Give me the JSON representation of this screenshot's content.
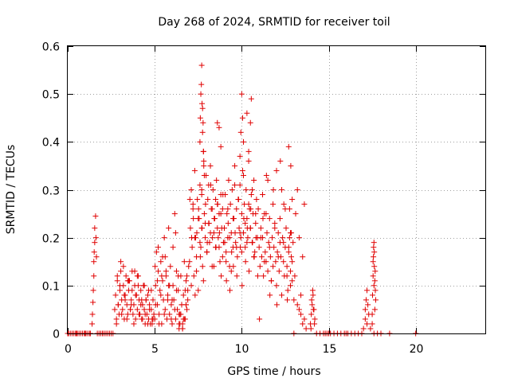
{
  "chart_data": {
    "type": "scatter",
    "title": "Day 268 of 2024, SRMTID for receiver toil",
    "xlabel": "GPS time / hours",
    "ylabel": "SRMTID / TECUs",
    "xlim": [
      0,
      24
    ],
    "ylim": [
      0,
      0.6
    ],
    "xticks": [
      0,
      5,
      10,
      15,
      20
    ],
    "yticks": [
      0,
      0.1,
      0.2,
      0.3,
      0.4,
      0.5,
      0.6
    ],
    "xtick_labels": [
      "0",
      "5",
      "10",
      "15",
      "20"
    ],
    "ytick_labels": [
      "0",
      "0.1",
      "0.2",
      "0.3",
      "0.4",
      "0.5",
      "0.6"
    ],
    "grid": true,
    "marker": "+",
    "series": [
      {
        "name": "SRMTID",
        "color": "#e00000",
        "x": [
          0.05,
          0.15,
          0.25,
          0.35,
          0.45,
          0.55,
          0.65,
          0.75,
          0.85,
          0.95,
          1.05,
          1.15,
          1.25,
          1.3,
          1.4,
          1.42,
          1.45,
          1.47,
          1.5,
          1.5,
          1.52,
          1.55,
          1.55,
          1.6,
          1.62,
          1.65,
          1.7,
          1.8,
          1.9,
          2.0,
          2.1,
          2.2,
          2.3,
          2.4,
          2.5,
          2.7,
          2.75,
          2.8,
          2.85,
          2.9,
          2.95,
          3.0,
          3.05,
          3.1,
          3.15,
          3.2,
          3.25,
          3.3,
          3.35,
          3.4,
          3.45,
          3.5,
          3.55,
          3.6,
          3.65,
          3.7,
          3.75,
          3.8,
          3.85,
          3.9,
          3.95,
          4.0,
          4.05,
          4.1,
          4.15,
          4.2,
          4.25,
          4.3,
          4.35,
          4.4,
          4.45,
          4.5,
          4.55,
          4.6,
          4.65,
          4.7,
          4.75,
          4.8,
          4.85,
          4.9,
          4.95,
          2.8,
          2.9,
          3.0,
          3.1,
          3.2,
          3.3,
          3.4,
          3.5,
          3.6,
          3.7,
          3.8,
          3.9,
          4.0,
          4.1,
          4.2,
          4.3,
          4.4,
          4.5,
          4.6,
          4.7,
          4.8,
          4.9,
          2.85,
          3.05,
          3.25,
          3.45,
          3.65,
          3.85,
          4.05,
          4.25,
          4.45,
          4.65,
          4.85,
          5.0,
          5.05,
          5.1,
          5.15,
          5.2,
          5.25,
          5.3,
          5.35,
          5.4,
          5.45,
          5.5,
          5.55,
          5.6,
          5.65,
          5.7,
          5.75,
          5.8,
          5.85,
          5.9,
          5.95,
          6.0,
          6.05,
          6.1,
          6.15,
          6.2,
          6.25,
          6.3,
          6.35,
          6.4,
          6.45,
          6.5,
          6.55,
          6.6,
          6.65,
          6.7,
          6.75,
          6.8,
          6.85,
          6.9,
          6.95,
          5.05,
          5.15,
          5.25,
          5.35,
          5.45,
          5.55,
          5.65,
          5.75,
          5.85,
          5.95,
          6.05,
          6.15,
          6.25,
          6.35,
          6.45,
          6.55,
          6.65,
          6.75,
          6.85,
          5.02,
          5.2,
          5.4,
          5.6,
          5.8,
          6.0,
          6.2,
          6.4,
          6.6,
          6.8,
          6.4,
          6.5,
          6.6,
          6.7,
          6.8,
          6.9,
          7.0,
          7.05,
          7.1,
          7.15,
          7.2,
          7.25,
          7.3,
          7.35,
          7.4,
          7.45,
          7.5,
          7.55,
          7.6,
          7.65,
          7.7,
          7.75,
          7.8,
          7.85,
          7.9,
          7.95,
          8.0,
          8.05,
          8.1,
          8.15,
          8.2,
          8.25,
          8.3,
          8.35,
          8.4,
          8.45,
          8.5,
          8.55,
          8.6,
          8.65,
          8.7,
          8.75,
          8.8,
          8.85,
          8.9,
          8.95,
          7.1,
          7.2,
          7.3,
          7.4,
          7.5,
          7.6,
          7.7,
          7.8,
          7.9,
          8.0,
          8.1,
          8.2,
          8.3,
          8.4,
          8.5,
          8.6,
          8.7,
          8.8,
          8.9,
          7.02,
          7.12,
          7.22,
          7.32,
          7.42,
          7.52,
          7.62,
          7.72,
          7.82,
          7.92,
          8.02,
          8.12,
          8.22,
          8.32,
          8.42,
          8.52,
          8.62,
          8.72,
          8.82,
          8.92,
          7.6,
          7.62,
          7.65,
          7.68,
          7.7,
          7.72,
          7.75,
          7.78,
          7.8,
          7.82,
          7.85,
          7.7,
          7.75,
          9.0,
          9.05,
          9.1,
          9.15,
          9.2,
          9.25,
          9.3,
          9.35,
          9.4,
          9.45,
          9.5,
          9.55,
          9.6,
          9.65,
          9.7,
          9.75,
          9.8,
          9.85,
          9.9,
          9.95,
          10.0,
          10.05,
          10.1,
          10.15,
          10.2,
          10.25,
          10.3,
          10.35,
          10.4,
          10.45,
          10.5,
          10.55,
          10.6,
          10.65,
          10.7,
          10.75,
          10.8,
          10.85,
          10.9,
          10.95,
          9.1,
          9.2,
          9.3,
          9.4,
          9.5,
          9.6,
          9.7,
          9.8,
          9.9,
          10.0,
          10.1,
          10.2,
          10.3,
          10.4,
          10.5,
          10.6,
          10.7,
          10.8,
          10.9,
          9.02,
          9.12,
          9.22,
          9.32,
          9.42,
          9.52,
          9.62,
          9.72,
          9.82,
          9.92,
          10.02,
          10.12,
          10.22,
          10.32,
          10.42,
          10.52,
          10.62,
          10.72,
          10.82,
          10.92,
          9.9,
          9.95,
          10.0,
          10.05,
          10.1,
          10.4,
          10.5,
          10.55,
          10.3,
          8.6,
          8.7,
          8.8,
          11.0,
          11.05,
          11.1,
          11.15,
          11.2,
          11.25,
          11.3,
          11.35,
          11.4,
          11.45,
          11.5,
          11.55,
          11.6,
          11.65,
          11.7,
          11.75,
          11.8,
          11.85,
          11.9,
          11.95,
          12.0,
          12.05,
          12.1,
          12.15,
          12.2,
          12.25,
          12.3,
          12.35,
          12.4,
          12.45,
          12.5,
          12.55,
          12.6,
          12.65,
          12.7,
          12.75,
          12.8,
          12.85,
          12.9,
          12.95,
          11.1,
          11.2,
          11.3,
          11.4,
          11.5,
          11.6,
          11.7,
          11.8,
          11.9,
          12.0,
          12.1,
          12.2,
          12.3,
          12.4,
          12.5,
          12.6,
          12.7,
          12.8,
          12.9,
          11.02,
          11.22,
          11.42,
          11.62,
          11.82,
          12.02,
          12.22,
          12.42,
          12.62,
          12.82,
          12.7,
          12.75,
          12.8,
          12.85,
          12.9,
          13.0,
          13.05,
          13.1,
          13.2,
          13.3,
          13.4,
          13.5,
          13.6,
          13.2,
          13.3,
          13.4,
          13.5,
          13.6,
          13.7,
          13.95,
          14.0,
          14.05,
          14.1,
          14.15,
          14.2,
          13.98,
          14.02,
          14.08,
          14.12,
          14.18,
          14.3,
          14.5,
          14.7,
          14.9,
          15.1,
          15.3,
          15.5,
          15.7,
          15.9,
          16.1,
          16.3,
          16.5,
          16.7,
          16.9,
          17.0,
          17.1,
          17.2,
          17.3,
          17.4,
          17.6,
          17.8,
          18.0,
          17.1,
          17.15,
          17.2,
          17.25,
          17.5,
          17.52,
          17.55,
          17.57,
          17.6,
          17.62,
          17.65,
          17.67,
          17.7,
          17.55,
          17.6,
          17.65,
          17.5,
          17.58,
          17.62,
          17.68,
          20.0,
          0.0,
          0.5,
          1.0,
          2.0,
          2.6,
          13.0,
          14.8,
          15.0,
          16.0,
          18.5
        ],
        "y": [
          0,
          0,
          0,
          0,
          0,
          0,
          0,
          0,
          0,
          0,
          0,
          0,
          0,
          0,
          0.02,
          0.04,
          0.065,
          0.09,
          0.12,
          0.15,
          0.17,
          0.19,
          0.22,
          0.245,
          0.2,
          0.16,
          0,
          0,
          0,
          0,
          0,
          0,
          0,
          0,
          0,
          0.05,
          0.08,
          0.03,
          0.11,
          0.06,
          0.04,
          0.09,
          0.13,
          0.07,
          0.05,
          0.1,
          0.03,
          0.08,
          0.12,
          0.06,
          0.04,
          0.09,
          0.11,
          0.05,
          0.07,
          0.13,
          0.04,
          0.06,
          0.1,
          0.03,
          0.08,
          0.05,
          0.12,
          0.07,
          0.04,
          0.09,
          0.03,
          0.06,
          0.1,
          0.05,
          0.02,
          0.07,
          0.04,
          0.08,
          0.03,
          0.06,
          0.02,
          0.05,
          0.03,
          0.07,
          0.04,
          0.02,
          0.06,
          0.1,
          0.04,
          0.14,
          0.07,
          0.03,
          0.11,
          0.05,
          0.09,
          0.02,
          0.08,
          0.12,
          0.04,
          0.06,
          0.03,
          0.1,
          0.07,
          0.02,
          0.05,
          0.09,
          0.03,
          0.12,
          0.15,
          0.08,
          0.11,
          0.06,
          0.13,
          0.1,
          0.07,
          0.04,
          0.09,
          0.02,
          0.03,
          0.1,
          0.17,
          0.06,
          0.13,
          0.04,
          0.09,
          0.15,
          0.02,
          0.11,
          0.07,
          0.2,
          0.05,
          0.12,
          0.03,
          0.08,
          0.22,
          0.04,
          0.14,
          0.06,
          0.02,
          0.1,
          0.07,
          0.25,
          0.03,
          0.13,
          0.05,
          0.09,
          0.01,
          0.04,
          0.12,
          0.06,
          0.02,
          0.08,
          0.15,
          0.03,
          0.11,
          0.05,
          0.07,
          0.14,
          0.06,
          0.11,
          0.02,
          0.08,
          0.16,
          0.04,
          0.13,
          0.07,
          0.1,
          0.03,
          0.18,
          0.05,
          0.09,
          0.12,
          0.02,
          0.06,
          0.03,
          0.09,
          0.12,
          0.14,
          0.18,
          0.12,
          0.16,
          0.1,
          0.07,
          0.21,
          0.04,
          0.01,
          0.06,
          0.02,
          0.04,
          0.01,
          0.03,
          0.06,
          0.09,
          0.15,
          0.22,
          0.3,
          0.18,
          0.26,
          0.12,
          0.34,
          0.2,
          0.16,
          0.28,
          0.09,
          0.24,
          0.31,
          0.18,
          0.22,
          0.14,
          0.38,
          0.25,
          0.2,
          0.33,
          0.17,
          0.28,
          0.23,
          0.19,
          0.35,
          0.26,
          0.14,
          0.3,
          0.21,
          0.24,
          0.18,
          0.32,
          0.27,
          0.2,
          0.25,
          0.15,
          0.29,
          0.22,
          0.26,
          0.19,
          0.1,
          0.27,
          0.2,
          0.13,
          0.24,
          0.19,
          0.29,
          0.11,
          0.23,
          0.17,
          0.31,
          0.21,
          0.26,
          0.14,
          0.28,
          0.22,
          0.18,
          0.25,
          0.16,
          0.28,
          0.2,
          0.24,
          0.08,
          0.21,
          0.26,
          0.16,
          0.22,
          0.35,
          0.27,
          0.19,
          0.23,
          0.31,
          0.2,
          0.24,
          0.18,
          0.27,
          0.21,
          0.12,
          0.29,
          0.4,
          0.45,
          0.5,
          0.52,
          0.56,
          0.48,
          0.42,
          0.44,
          0.38,
          0.36,
          0.33,
          0.3,
          0.47,
          0.22,
          0.29,
          0.17,
          0.25,
          0.2,
          0.32,
          0.14,
          0.27,
          0.21,
          0.3,
          0.18,
          0.24,
          0.35,
          0.19,
          0.26,
          0.16,
          0.28,
          0.22,
          0.31,
          0.2,
          0.25,
          0.34,
          0.21,
          0.27,
          0.18,
          0.3,
          0.24,
          0.2,
          0.36,
          0.26,
          0.22,
          0.29,
          0.19,
          0.25,
          0.32,
          0.17,
          0.23,
          0.28,
          0.2,
          0.26,
          0.15,
          0.26,
          0.2,
          0.13,
          0.24,
          0.31,
          0.18,
          0.28,
          0.21,
          0.17,
          0.33,
          0.23,
          0.19,
          0.27,
          0.22,
          0.3,
          0.16,
          0.25,
          0.2,
          0.19,
          0.11,
          0.23,
          0.09,
          0.17,
          0.14,
          0.21,
          0.12,
          0.28,
          0.18,
          0.1,
          0.24,
          0.15,
          0.22,
          0.13,
          0.26,
          0.19,
          0.16,
          0.2,
          0.12,
          0.37,
          0.42,
          0.5,
          0.45,
          0.4,
          0.38,
          0.44,
          0.49,
          0.46,
          0.44,
          0.43,
          0.39,
          0.18,
          0.14,
          0.22,
          0.16,
          0.2,
          0.12,
          0.25,
          0.17,
          0.15,
          0.21,
          0.13,
          0.19,
          0.24,
          0.16,
          0.11,
          0.2,
          0.14,
          0.18,
          0.23,
          0.15,
          0.1,
          0.17,
          0.21,
          0.13,
          0.19,
          0.16,
          0.08,
          0.2,
          0.15,
          0.12,
          0.18,
          0.22,
          0.14,
          0.09,
          0.17,
          0.2,
          0.13,
          0.16,
          0.11,
          0.19,
          0.2,
          0.29,
          0.15,
          0.25,
          0.32,
          0.18,
          0.11,
          0.27,
          0.22,
          0.34,
          0.16,
          0.24,
          0.3,
          0.19,
          0.26,
          0.12,
          0.39,
          0.21,
          0.28,
          0.03,
          0.24,
          0.33,
          0.08,
          0.3,
          0.06,
          0.36,
          0.27,
          0.07,
          0.35,
          0.18,
          0.26,
          0.1,
          0.21,
          0.15,
          0.07,
          0.12,
          0.25,
          0.3,
          0.2,
          0.08,
          0.16,
          0.27,
          0.06,
          0.05,
          0.04,
          0.02,
          0.03,
          0.01,
          0.02,
          0.04,
          0.06,
          0.08,
          0.05,
          0.03,
          0.01,
          0.07,
          0.09,
          0.05,
          0.02,
          0,
          0,
          0,
          0,
          0,
          0,
          0,
          0,
          0,
          0,
          0,
          0,
          0,
          0,
          0.01,
          0.03,
          0.02,
          0.04,
          0.01,
          0.0,
          0.0,
          0.0,
          0.05,
          0.07,
          0.09,
          0.06,
          0.04,
          0.08,
          0.12,
          0.16,
          0.19,
          0.17,
          0.11,
          0.13,
          0.07,
          0.15,
          0.1,
          0.05,
          0.02,
          0.18,
          0.14,
          0.09,
          0,
          0,
          0,
          0,
          0,
          0,
          0,
          0,
          0,
          0,
          0
        ]
      }
    ]
  }
}
